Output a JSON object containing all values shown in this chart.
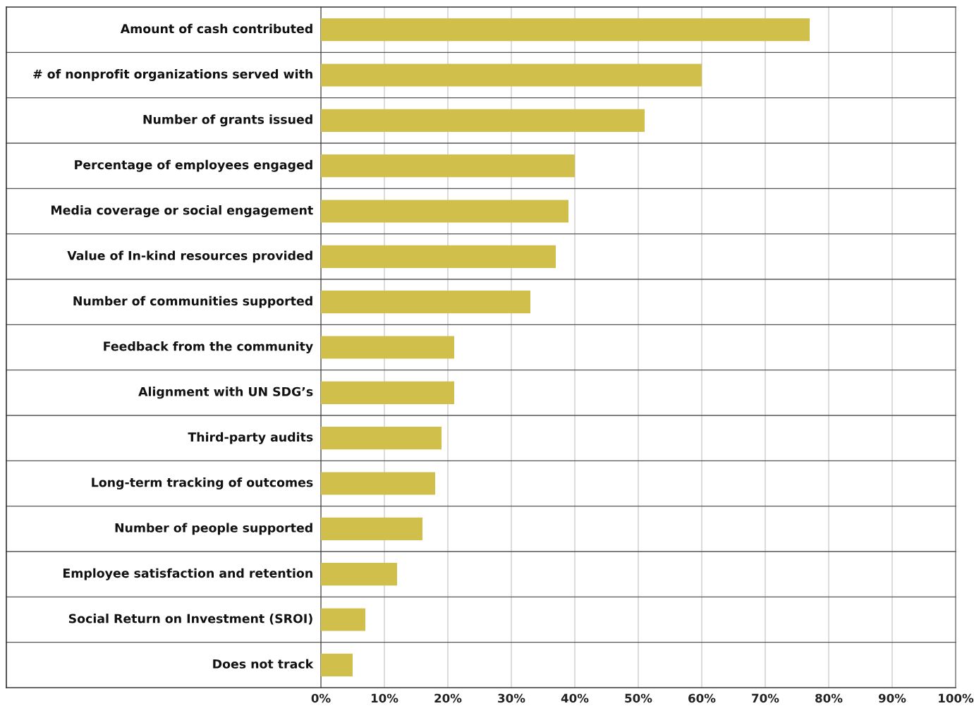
{
  "chart_data": {
    "type": "bar",
    "orientation": "horizontal",
    "categories": [
      "Amount of cash contributed",
      "# of nonprofit organizations served with",
      "Number of grants issued",
      "Percentage of employees engaged",
      "Media coverage or social engagement",
      "Value of In-kind resources provided",
      "Number of communities supported",
      "Feedback from the community",
      "Alignment with UN SDG’s",
      "Third-party audits",
      "Long-term tracking of outcomes",
      "Number of people supported",
      "Employee satisfaction and retention",
      "Social Return on Investment (SROI)",
      "Does not track"
    ],
    "values": [
      77,
      60,
      51,
      40,
      39,
      37,
      33,
      21,
      21,
      19,
      18,
      16,
      12,
      7,
      5
    ],
    "color": "#d1bf4b",
    "xlim": [
      0,
      100
    ],
    "xticks": [
      {
        "value": 0,
        "label": "0%"
      },
      {
        "value": 10,
        "label": "10%"
      },
      {
        "value": 20,
        "label": "20%"
      },
      {
        "value": 30,
        "label": "30%"
      },
      {
        "value": 40,
        "label": "40%"
      },
      {
        "value": 50,
        "label": "50%"
      },
      {
        "value": 60,
        "label": "60%"
      },
      {
        "value": 70,
        "label": "70%"
      },
      {
        "value": 80,
        "label": "80%"
      },
      {
        "value": 90,
        "label": "90%"
      },
      {
        "value": 100,
        "label": "100%"
      }
    ],
    "grid": "x",
    "legend": false
  }
}
